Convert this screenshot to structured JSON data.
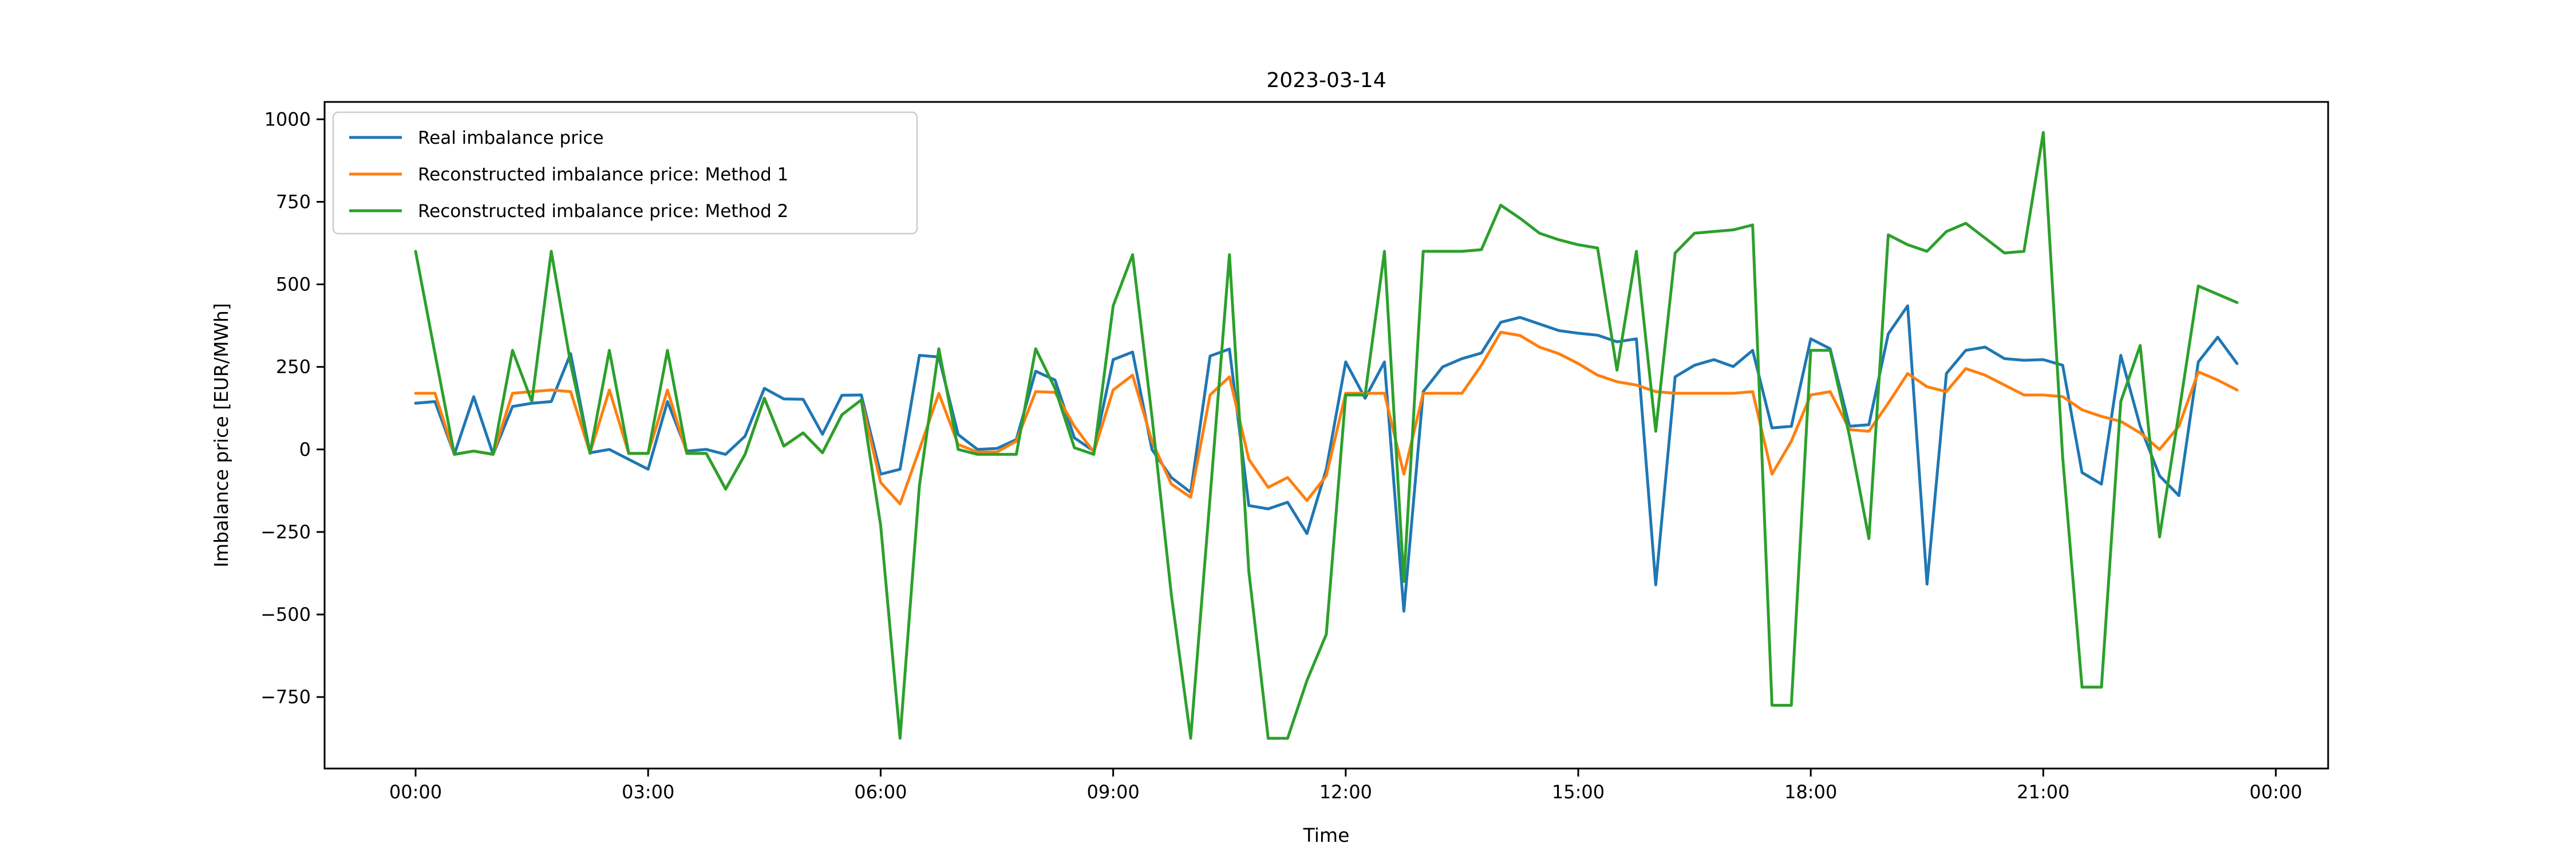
{
  "title": "2023-03-14",
  "axes": {
    "xlabel": "Time",
    "ylabel": "Imbalance price [EUR/MWh]",
    "ytick_labels": [
      "1000",
      "750",
      "500",
      "250",
      "0",
      "−250",
      "−500",
      "−750"
    ],
    "ytick_values": [
      1000,
      750,
      500,
      250,
      0,
      -250,
      -500,
      -750
    ],
    "xtick_labels": [
      "00:00",
      "03:00",
      "06:00",
      "09:00",
      "12:00",
      "15:00",
      "18:00",
      "21:00",
      "00:00"
    ],
    "xtick_hours": [
      0,
      3,
      6,
      9,
      12,
      15,
      18,
      21,
      24
    ],
    "ylim": [
      -966,
      1052
    ],
    "grid": false,
    "legend_position": "upper-left"
  },
  "legend": [
    {
      "label": "Real imbalance price",
      "color": "#1f77b4"
    },
    {
      "label": "Reconstructed imbalance price: Method 1",
      "color": "#ff7f0e"
    },
    {
      "label": "Reconstructed imbalance price: Method 2",
      "color": "#2ca02c"
    }
  ],
  "colors": {
    "blue": "#1f77b4",
    "orange": "#ff7f0e",
    "green": "#2ca02c",
    "spine": "#000000",
    "legend_border": "#cccccc"
  },
  "chart_data": {
    "type": "line",
    "title": "2023-03-14",
    "xlabel": "Time",
    "ylabel": "Imbalance price [EUR/MWh]",
    "x_start": "00:00",
    "x_step_minutes": 15,
    "n_points": 95,
    "units": "EUR/MWh",
    "series": [
      {
        "name": "Real imbalance price",
        "color": "#1f77b4",
        "values": [
          140,
          145,
          -15,
          160,
          -15,
          130,
          140,
          145,
          290,
          -10,
          0,
          -30,
          -60,
          145,
          -5,
          0,
          -15,
          40,
          185,
          153,
          152,
          46,
          164,
          165,
          -75,
          -60,
          285,
          280,
          45,
          0,
          3,
          30,
          237,
          210,
          35,
          -5,
          272,
          295,
          0,
          -85,
          -130,
          283,
          304,
          -170,
          -180,
          -160,
          -255,
          -60,
          265,
          155,
          265,
          -490,
          175,
          250,
          275,
          292,
          385,
          400,
          380,
          360,
          352,
          346,
          326,
          335,
          -410,
          220,
          255,
          272,
          251,
          300,
          65,
          70,
          335,
          305,
          70,
          75,
          350,
          435,
          -408,
          230,
          300,
          310,
          275,
          270,
          272,
          255,
          -70,
          -105,
          285,
          70,
          -80,
          -140,
          265,
          340,
          260
        ]
      },
      {
        "name": "Reconstructed imbalance price: Method 1",
        "color": "#ff7f0e",
        "values": [
          170,
          170,
          -15,
          -5,
          -15,
          170,
          175,
          180,
          175,
          -10,
          180,
          -12,
          -12,
          180,
          -12,
          -12,
          -120,
          -15,
          155,
          10,
          50,
          -10,
          105,
          150,
          -100,
          -165,
          0,
          170,
          15,
          -8,
          -8,
          25,
          175,
          173,
          70,
          -8,
          180,
          225,
          25,
          -105,
          -145,
          165,
          220,
          -30,
          -115,
          -85,
          -155,
          -80,
          170,
          170,
          170,
          -75,
          170,
          170,
          170,
          255,
          355,
          345,
          310,
          290,
          260,
          225,
          205,
          195,
          175,
          170,
          170,
          170,
          170,
          175,
          -75,
          25,
          165,
          175,
          60,
          55,
          140,
          230,
          190,
          175,
          245,
          225,
          195,
          165,
          165,
          160,
          120,
          100,
          85,
          50,
          0,
          70,
          235,
          210,
          180
        ]
      },
      {
        "name": "Reconstructed imbalance price: Method 2",
        "color": "#2ca02c",
        "values": [
          600,
          290,
          -15,
          -5,
          -15,
          300,
          145,
          600,
          260,
          -12,
          300,
          -12,
          -12,
          300,
          -12,
          -12,
          -120,
          -15,
          155,
          10,
          50,
          -10,
          105,
          150,
          -230,
          -875,
          -110,
          305,
          0,
          -15,
          -15,
          -15,
          305,
          185,
          5,
          -15,
          435,
          590,
          100,
          -440,
          -875,
          -145,
          590,
          -370,
          -875,
          -875,
          -700,
          -560,
          165,
          165,
          600,
          -400,
          600,
          600,
          600,
          605,
          740,
          700,
          655,
          635,
          620,
          610,
          240,
          600,
          55,
          595,
          655,
          660,
          665,
          680,
          -775,
          -775,
          300,
          300,
          40,
          -270,
          650,
          620,
          600,
          660,
          685,
          640,
          595,
          600,
          960,
          -25,
          -720,
          -720,
          145,
          315,
          -265,
          110,
          495,
          470,
          445
        ]
      }
    ]
  }
}
